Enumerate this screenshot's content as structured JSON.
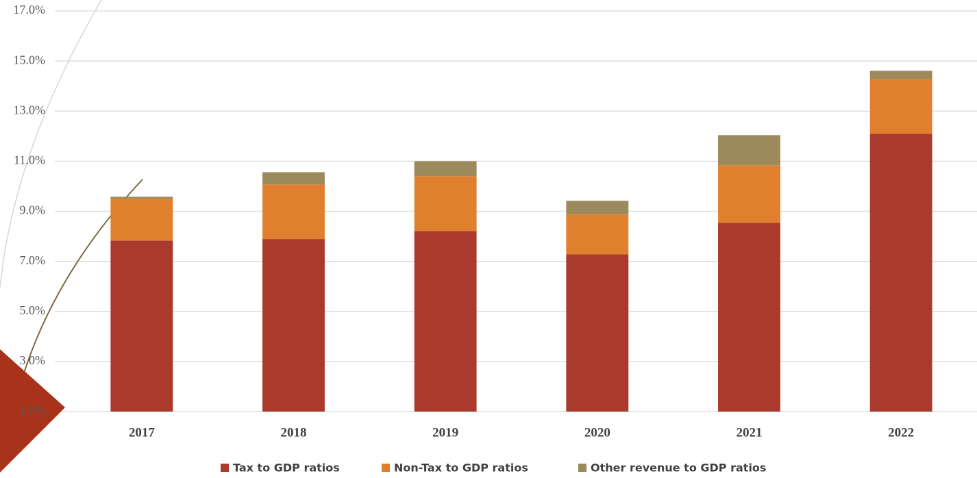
{
  "chart_data": {
    "type": "stacked_bar",
    "categories": [
      "2017",
      "2018",
      "2019",
      "2020",
      "2021",
      "2022"
    ],
    "series": [
      {
        "name": "Tax to GDP ratios",
        "color": "#a93a2c",
        "values": [
          7.83,
          7.89,
          8.21,
          7.28,
          8.54,
          12.09
        ]
      },
      {
        "name": "Non-Tax to GDP ratios",
        "color": "#e0802f",
        "values": [
          1.67,
          2.18,
          2.19,
          1.59,
          2.3,
          2.19
        ]
      },
      {
        "name": "Other revenue to GDP ratios",
        "color": "#9c8a5c",
        "values": [
          0.08,
          0.49,
          0.6,
          0.55,
          1.2,
          0.33
        ]
      }
    ],
    "ylim": [
      1,
      17
    ],
    "yticks": [
      {
        "value": 1,
        "label": "1.0%"
      },
      {
        "value": 3,
        "label": "3.0%"
      },
      {
        "value": 5,
        "label": "5.0%"
      },
      {
        "value": 7,
        "label": "7.0%"
      },
      {
        "value": 9,
        "label": "9.0%"
      },
      {
        "value": 11,
        "label": "11.0%"
      },
      {
        "value": 13,
        "label": "13.0%"
      },
      {
        "value": 15,
        "label": "15.0%"
      },
      {
        "value": 17,
        "label": "17.0%"
      }
    ],
    "grid": true,
    "legend": "bottom"
  }
}
